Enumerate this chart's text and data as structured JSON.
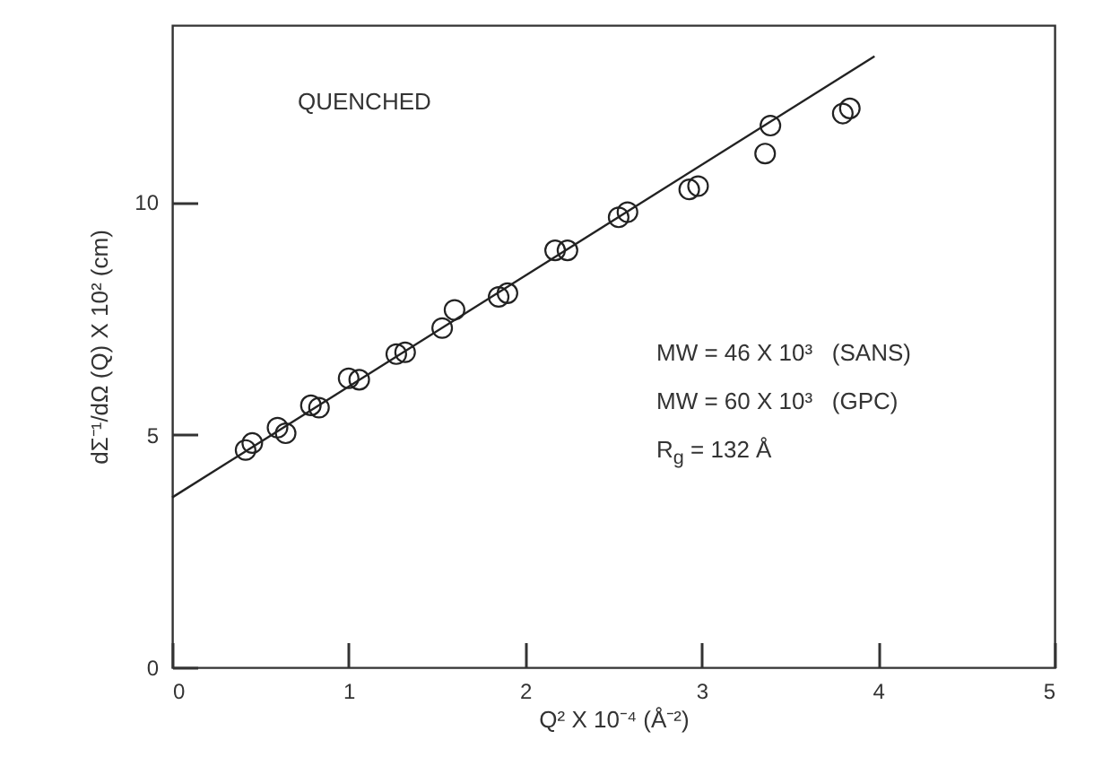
{
  "chart_data": {
    "type": "scatter",
    "xlabel": "Q² X 10⁻⁴ (Å⁻²)",
    "ylabel": "dΣ⁻¹/dΩ (Q) X 10² (cm)",
    "xlim": [
      0,
      5
    ],
    "xticks": [
      0,
      1,
      2,
      3,
      4,
      5
    ],
    "ylim": [
      0,
      13.8
    ],
    "yticks": [
      0,
      5,
      10
    ],
    "grid": false,
    "series": [
      {
        "marker": "circle",
        "color": "#222222",
        "x": [
          0.416,
          0.454,
          0.597,
          0.643,
          0.786,
          0.832,
          1.0,
          1.06,
          1.27,
          1.32,
          1.53,
          1.6,
          1.85,
          1.9,
          2.17,
          2.24,
          2.53,
          2.58,
          2.93,
          2.98,
          3.36,
          3.39,
          3.8,
          3.84
        ],
        "values": [
          4.67,
          4.82,
          5.15,
          5.03,
          5.63,
          5.58,
          6.21,
          6.18,
          6.73,
          6.77,
          7.29,
          7.68,
          7.96,
          8.04,
          8.96,
          8.96,
          9.67,
          9.78,
          10.27,
          10.34,
          11.04,
          11.64,
          11.9,
          12.01
        ]
      },
      {
        "type": "line",
        "color": "#222222",
        "x": [
          0,
          3.98
        ],
        "values": [
          3.65,
          13.13
        ]
      }
    ],
    "annotations": [
      "QUENCHED",
      "MW = 46 X 10³   (SANS)",
      "MW = 60 X 10³   (GPC)",
      "R$_{g}$ = 132 Å"
    ]
  }
}
